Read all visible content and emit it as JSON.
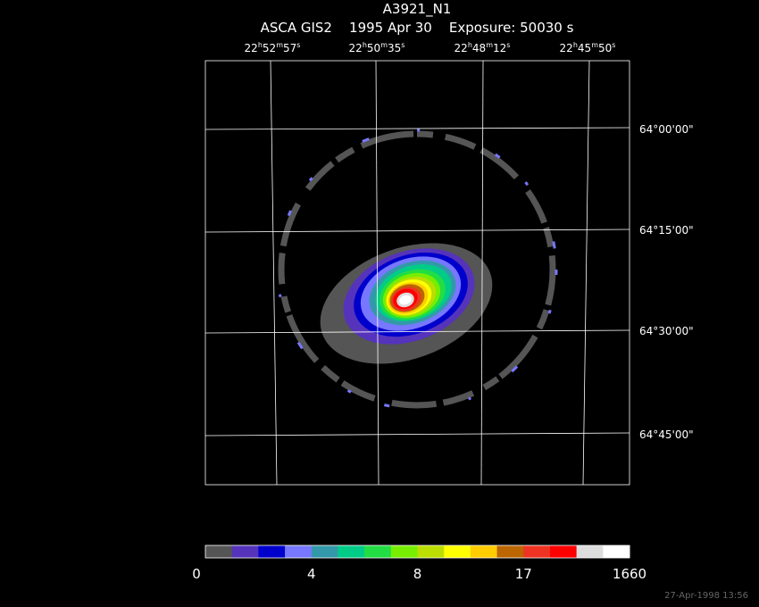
{
  "header": {
    "title": "A3921_N1",
    "subtitle": "ASCA GIS2    1995 Apr 30    Exposure: 50030 s"
  },
  "ra_labels": [
    [
      "22",
      "h",
      "52",
      "m",
      "57",
      "s"
    ],
    [
      "22",
      "h",
      "50",
      "m",
      "35",
      "s"
    ],
    [
      "22",
      "h",
      "48",
      "m",
      "12",
      "s"
    ],
    [
      "22",
      "h",
      "45",
      "m",
      "50",
      "s"
    ]
  ],
  "dec_labels": [
    "64°00'00\"",
    "64°15'00\"",
    "64°30'00\"",
    "64°45'00\""
  ],
  "colorbar": {
    "colors": [
      "#555555",
      "#5533bb",
      "#0000cc",
      "#7777ff",
      "#3399aa",
      "#00cc88",
      "#22dd44",
      "#77ee00",
      "#bbdd00",
      "#ffff00",
      "#ffcc00",
      "#bb6600",
      "#ee3322",
      "#ff0000",
      "#dddddd",
      "#ffffff"
    ],
    "labels": [
      0,
      4,
      8,
      17,
      1660
    ]
  },
  "timestamp": "27-Apr-1998 13:56"
}
